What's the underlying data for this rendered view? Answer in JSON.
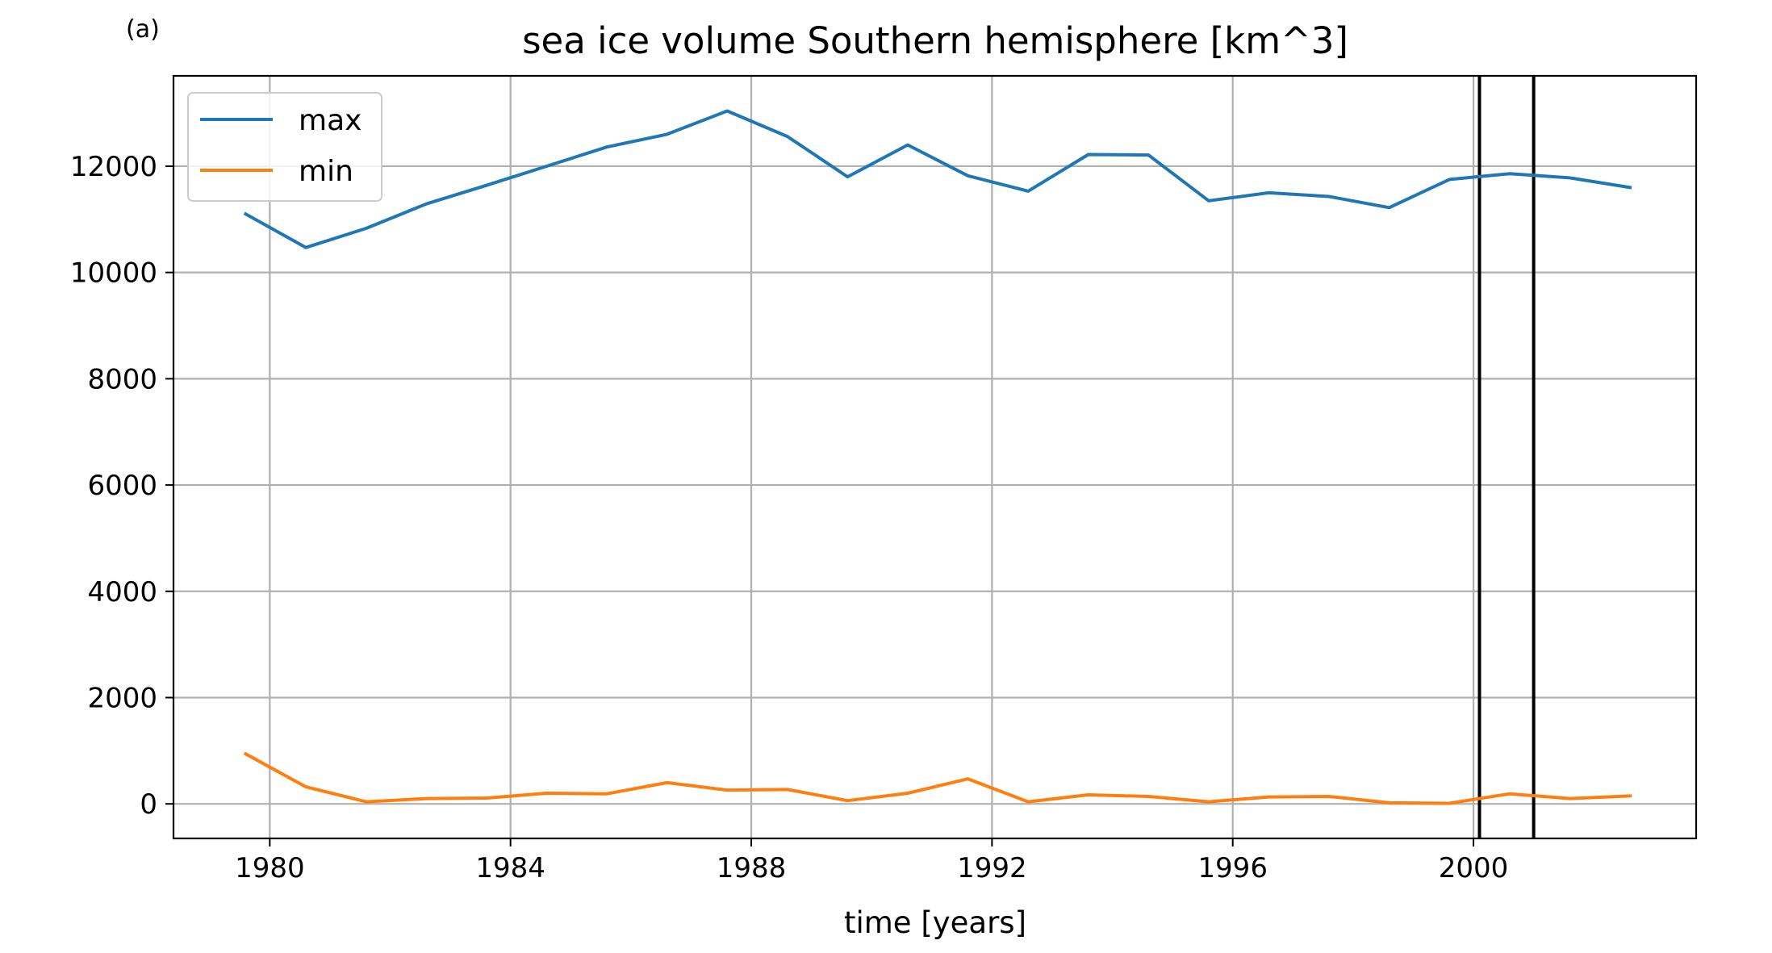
{
  "panel_label": "(a)",
  "chart_data": {
    "type": "line",
    "title": "sea ice volume Southern hemisphere [km^3]",
    "xlabel": "time [years]",
    "ylabel": "",
    "xlim": [
      1978.4,
      2003.7
    ],
    "ylim": [
      -650,
      13700
    ],
    "x_ticks": [
      1980,
      1984,
      1988,
      1992,
      1996,
      2000
    ],
    "x_tick_labels": [
      "1980",
      "1984",
      "1988",
      "1992",
      "1996",
      "2000"
    ],
    "y_ticks": [
      0,
      2000,
      4000,
      6000,
      8000,
      10000,
      12000
    ],
    "y_tick_labels": [
      "0",
      "2000",
      "4000",
      "6000",
      "8000",
      "10000",
      "12000"
    ],
    "grid": true,
    "legend_position": "top-left",
    "x": [
      1979.6,
      1980.6,
      1981.6,
      1982.6,
      1983.6,
      1984.6,
      1985.6,
      1986.6,
      1987.6,
      1988.6,
      1989.6,
      1990.6,
      1991.6,
      1992.6,
      1993.6,
      1994.6,
      1995.6,
      1996.6,
      1997.6,
      1998.6,
      1999.6,
      2000.6,
      2001.6,
      2002.6
    ],
    "series": [
      {
        "name": "max",
        "color": "#1f77b4",
        "values": [
          11100,
          10470,
          10830,
          11290,
          11640,
          12000,
          12360,
          12600,
          13040,
          12560,
          11800,
          12400,
          11820,
          11530,
          12220,
          12210,
          11350,
          11500,
          11430,
          11220,
          11750,
          11860,
          11780,
          11600
        ]
      },
      {
        "name": "min",
        "color": "#ff7f0e",
        "values": [
          940,
          320,
          40,
          100,
          110,
          200,
          190,
          400,
          260,
          270,
          60,
          200,
          470,
          40,
          170,
          140,
          40,
          130,
          140,
          20,
          10,
          190,
          100,
          150
        ]
      }
    ],
    "vertical_lines": [
      {
        "x": 2000.1,
        "color": "#000000"
      },
      {
        "x": 2001.0,
        "color": "#000000"
      }
    ]
  }
}
